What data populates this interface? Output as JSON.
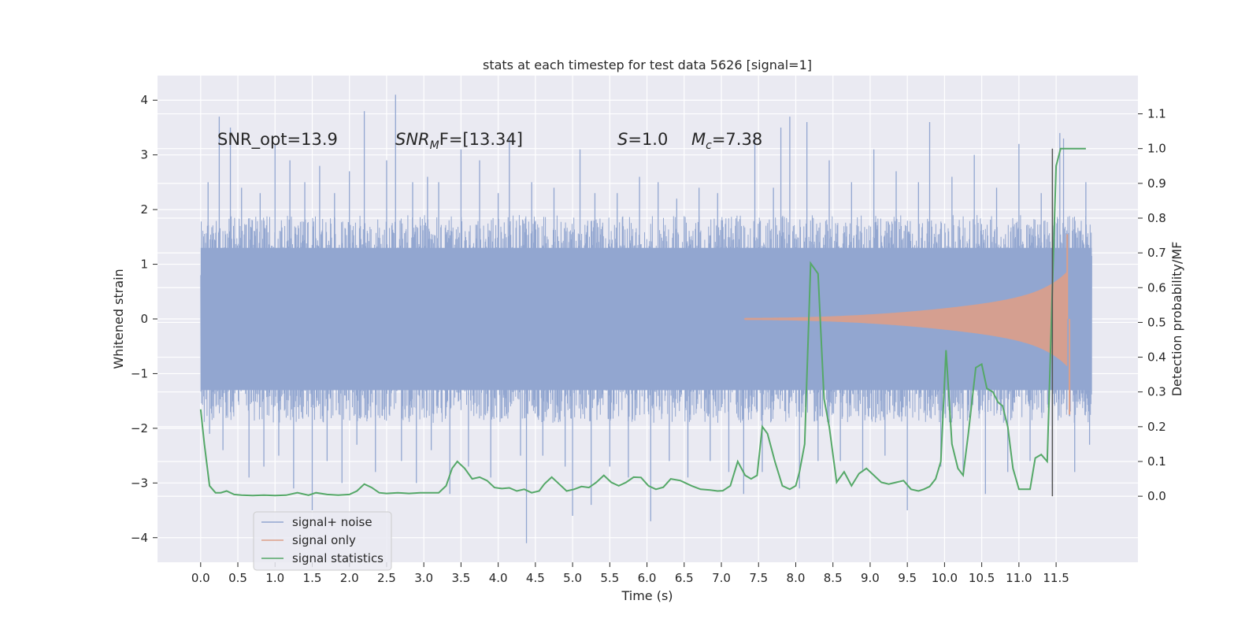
{
  "chart_data": {
    "type": "line",
    "title": "stats at each timestep for test data 5626 [signal=1]",
    "xlabel": "Time (s)",
    "ylabel": "Whitened strain",
    "y2label": "Detection probability/MF",
    "xlim": [
      -0.58,
      12.6
    ],
    "ylim": [
      -4.45,
      4.45
    ],
    "y2lim": [
      -0.19,
      1.21
    ],
    "x_ticks": [
      "0.0",
      "0.5",
      "1.0",
      "1.5",
      "2.0",
      "2.5",
      "3.0",
      "3.5",
      "4.0",
      "4.5",
      "5.0",
      "5.5",
      "6.0",
      "6.5",
      "7.0",
      "7.5",
      "8.0",
      "8.5",
      "9.0",
      "9.5",
      "10.0",
      "10.5",
      "11.0",
      "11.5"
    ],
    "x_tick_values": [
      0.0,
      0.5,
      1.0,
      1.5,
      2.0,
      2.5,
      3.0,
      3.5,
      4.0,
      4.5,
      5.0,
      5.5,
      6.0,
      6.5,
      7.0,
      7.5,
      8.0,
      8.5,
      9.0,
      9.5,
      10.0,
      10.5,
      11.0,
      11.5
    ],
    "y_ticks": [
      "4",
      "3",
      "2",
      "1",
      "0",
      "−1",
      "−2",
      "−3",
      "−4"
    ],
    "y_tick_values": [
      4,
      3,
      2,
      1,
      0,
      -1,
      -2,
      -3,
      -4
    ],
    "y2_ticks": [
      "1.1",
      "1.0",
      "0.9",
      "0.8",
      "0.7",
      "0.6",
      "0.5",
      "0.4",
      "0.3",
      "0.2",
      "0.1",
      "0.0"
    ],
    "y2_tick_values": [
      1.1,
      1.0,
      0.9,
      0.8,
      0.7,
      0.6,
      0.5,
      0.4,
      0.3,
      0.2,
      0.1,
      0.0
    ],
    "grid": true,
    "legend_position": "lower-left",
    "annotations": {
      "snr_opt": "SNR_opt=13.9",
      "snr_mf_main": "SNR",
      "snr_mf_sub": "M",
      "snr_mf_rest": "F=[13.34]",
      "s_main": "S",
      "s_rest": "=1.0",
      "mc_main": "M",
      "mc_sub": "c",
      "mc_rest": "=7.38"
    },
    "marker_line_x": 11.45,
    "series": [
      {
        "name": "signal+ noise",
        "color": "#92a6d0",
        "description_x_range": [
          0.0,
          11.98
        ],
        "envelope_core": [
          -1.3,
          1.3
        ],
        "spikes": [
          [
            0.1,
            2.5
          ],
          [
            0.12,
            -2.1
          ],
          [
            0.25,
            3.7
          ],
          [
            0.3,
            -2.4
          ],
          [
            0.4,
            3.5
          ],
          [
            0.55,
            2.4
          ],
          [
            0.65,
            -2.9
          ],
          [
            0.8,
            2.3
          ],
          [
            0.85,
            -2.7
          ],
          [
            1.0,
            3.2
          ],
          [
            1.05,
            -2.5
          ],
          [
            1.2,
            2.9
          ],
          [
            1.25,
            -3.1
          ],
          [
            1.4,
            2.5
          ],
          [
            1.5,
            -3.5
          ],
          [
            1.6,
            2.8
          ],
          [
            1.7,
            -2.6
          ],
          [
            1.8,
            2.3
          ],
          [
            1.9,
            -3.0
          ],
          [
            2.0,
            2.7
          ],
          [
            2.1,
            -2.3
          ],
          [
            2.2,
            3.8
          ],
          [
            2.35,
            -2.8
          ],
          [
            2.5,
            2.9
          ],
          [
            2.62,
            4.1
          ],
          [
            2.7,
            -2.6
          ],
          [
            2.85,
            2.5
          ],
          [
            2.9,
            -3.0
          ],
          [
            3.05,
            2.6
          ],
          [
            3.1,
            -2.4
          ],
          [
            3.2,
            2.5
          ],
          [
            3.35,
            -3.2
          ],
          [
            3.5,
            3.1
          ],
          [
            3.6,
            -2.7
          ],
          [
            3.75,
            2.9
          ],
          [
            3.9,
            -2.9
          ],
          [
            4.0,
            2.3
          ],
          [
            4.15,
            3.3
          ],
          [
            4.3,
            -2.5
          ],
          [
            4.38,
            -4.1
          ],
          [
            4.45,
            2.5
          ],
          [
            4.6,
            -2.5
          ],
          [
            4.75,
            2.4
          ],
          [
            4.9,
            -2.7
          ],
          [
            5.0,
            -3.6
          ],
          [
            5.1,
            3.1
          ],
          [
            5.25,
            -3.4
          ],
          [
            5.3,
            2.3
          ],
          [
            5.5,
            -2.7
          ],
          [
            5.6,
            2.3
          ],
          [
            5.75,
            -2.9
          ],
          [
            5.9,
            2.6
          ],
          [
            6.05,
            -3.7
          ],
          [
            6.15,
            2.5
          ],
          [
            6.3,
            -2.6
          ],
          [
            6.4,
            2.2
          ],
          [
            6.55,
            -2.9
          ],
          [
            6.7,
            2.4
          ],
          [
            6.85,
            -2.6
          ],
          [
            6.95,
            2.3
          ],
          [
            7.1,
            -2.8
          ],
          [
            7.3,
            -3.2
          ],
          [
            7.45,
            3.4
          ],
          [
            7.55,
            -2.8
          ],
          [
            7.7,
            2.4
          ],
          [
            7.8,
            3.5
          ],
          [
            7.92,
            3.7
          ],
          [
            8.05,
            -3.1
          ],
          [
            8.15,
            3.6
          ],
          [
            8.3,
            -2.6
          ],
          [
            8.45,
            2.9
          ],
          [
            8.6,
            -2.6
          ],
          [
            8.75,
            2.5
          ],
          [
            8.9,
            -2.8
          ],
          [
            9.05,
            3.1
          ],
          [
            9.2,
            -2.5
          ],
          [
            9.35,
            2.7
          ],
          [
            9.5,
            -3.5
          ],
          [
            9.65,
            2.5
          ],
          [
            9.8,
            3.6
          ],
          [
            9.95,
            -2.7
          ],
          [
            10.1,
            2.6
          ],
          [
            10.25,
            -2.8
          ],
          [
            10.4,
            3.0
          ],
          [
            10.55,
            -3.2
          ],
          [
            10.7,
            2.4
          ],
          [
            10.85,
            -2.8
          ],
          [
            11.0,
            3.2
          ],
          [
            11.15,
            -2.6
          ],
          [
            11.3,
            2.3
          ],
          [
            11.45,
            -3.1
          ],
          [
            11.55,
            3.4
          ],
          [
            11.6,
            3.3
          ],
          [
            11.75,
            -2.8
          ],
          [
            11.9,
            2.5
          ],
          [
            11.95,
            -2.3
          ]
        ]
      },
      {
        "name": "signal only",
        "color": "#dd9f88",
        "start_x": 7.3,
        "end_x": 11.65,
        "final_peak": [
          11.65,
          1.55
        ],
        "final_trough": [
          11.68,
          -1.75
        ]
      },
      {
        "name": "signal statistics",
        "color": "#55a868",
        "x": [
          0.0,
          0.05,
          0.12,
          0.2,
          0.27,
          0.35,
          0.45,
          0.55,
          0.7,
          0.85,
          1.0,
          1.15,
          1.3,
          1.45,
          1.55,
          1.7,
          1.85,
          2.0,
          2.1,
          2.2,
          2.3,
          2.4,
          2.5,
          2.65,
          2.8,
          2.95,
          3.1,
          3.2,
          3.3,
          3.38,
          3.45,
          3.55,
          3.65,
          3.75,
          3.85,
          3.95,
          4.05,
          4.15,
          4.25,
          4.35,
          4.45,
          4.55,
          4.62,
          4.72,
          4.82,
          4.92,
          5.02,
          5.12,
          5.22,
          5.32,
          5.42,
          5.52,
          5.62,
          5.72,
          5.82,
          5.92,
          6.02,
          6.12,
          6.22,
          6.32,
          6.45,
          6.6,
          6.72,
          6.85,
          6.95,
          7.02,
          7.12,
          7.22,
          7.32,
          7.4,
          7.48,
          7.55,
          7.62,
          7.72,
          7.82,
          7.92,
          8.0,
          8.05,
          8.12,
          8.2,
          8.3,
          8.38,
          8.45,
          8.55,
          8.65,
          8.75,
          8.85,
          8.95,
          9.05,
          9.15,
          9.25,
          9.35,
          9.45,
          9.55,
          9.65,
          9.72,
          9.8,
          9.88,
          9.95,
          10.02,
          10.1,
          10.18,
          10.25,
          10.32,
          10.42,
          10.5,
          10.57,
          10.65,
          10.72,
          10.78,
          10.85,
          10.92,
          11.0,
          11.08,
          11.15,
          11.22,
          11.3,
          11.38,
          11.45,
          11.5,
          11.56,
          11.62,
          11.7,
          11.8,
          11.9
        ],
        "y": [
          0.25,
          0.15,
          0.03,
          0.01,
          0.01,
          0.015,
          0.005,
          0.003,
          0.002,
          0.003,
          0.002,
          0.003,
          0.01,
          0.003,
          0.01,
          0.005,
          0.003,
          0.005,
          0.015,
          0.035,
          0.025,
          0.01,
          0.008,
          0.01,
          0.008,
          0.01,
          0.01,
          0.01,
          0.03,
          0.08,
          0.1,
          0.08,
          0.05,
          0.055,
          0.045,
          0.025,
          0.022,
          0.024,
          0.015,
          0.02,
          0.01,
          0.015,
          0.035,
          0.055,
          0.035,
          0.015,
          0.02,
          0.028,
          0.025,
          0.04,
          0.06,
          0.04,
          0.03,
          0.04,
          0.055,
          0.054,
          0.03,
          0.02,
          0.026,
          0.05,
          0.045,
          0.03,
          0.02,
          0.018,
          0.015,
          0.016,
          0.03,
          0.1,
          0.06,
          0.05,
          0.06,
          0.2,
          0.18,
          0.1,
          0.03,
          0.02,
          0.03,
          0.07,
          0.15,
          0.67,
          0.64,
          0.28,
          0.2,
          0.04,
          0.07,
          0.03,
          0.065,
          0.08,
          0.06,
          0.04,
          0.035,
          0.04,
          0.045,
          0.02,
          0.015,
          0.02,
          0.028,
          0.05,
          0.1,
          0.42,
          0.15,
          0.08,
          0.06,
          0.18,
          0.37,
          0.38,
          0.31,
          0.3,
          0.27,
          0.26,
          0.2,
          0.08,
          0.02,
          0.02,
          0.02,
          0.11,
          0.12,
          0.1,
          0.6,
          0.95,
          1.0,
          1.0,
          1.0,
          1.0,
          1.0
        ]
      }
    ]
  },
  "legend": {
    "items": [
      "signal+ noise",
      "signal only",
      "signal statistics"
    ]
  }
}
